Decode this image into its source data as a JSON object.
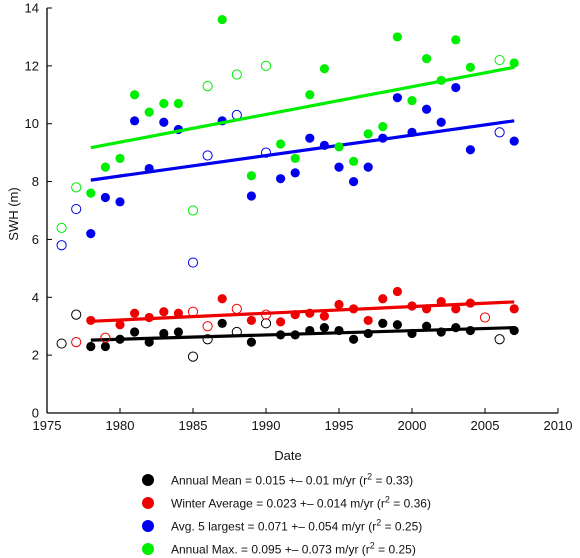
{
  "chart_data": {
    "type": "scatter",
    "xlabel": "Date",
    "ylabel": "SWH (m)",
    "xlim": [
      1975,
      2010
    ],
    "ylim": [
      0,
      14
    ],
    "xticks": [
      1975,
      1980,
      1985,
      1990,
      1995,
      2000,
      2005,
      2010
    ],
    "yticks": [
      0,
      2,
      4,
      6,
      8,
      10,
      12,
      14
    ],
    "xtick_labels": [
      "1975",
      "1980",
      "1985",
      "1990",
      "1995",
      "2000",
      "2005",
      "2010"
    ],
    "ytick_labels": [
      "0",
      "2",
      "4",
      "6",
      "8",
      "10",
      "12",
      "14"
    ],
    "grid": false,
    "legend_position": "bottom",
    "series": [
      {
        "key": "annual_mean",
        "color": "#000000",
        "legend_label": "Annual Mean = 0.015 +– 0.01 m/yr (r",
        "legend_suffix": " = 0.33)",
        "fit": {
          "x": [
            1978,
            2007
          ],
          "y": [
            2.52,
            2.95
          ]
        },
        "filled": [
          [
            1978,
            2.3
          ],
          [
            1979,
            2.3
          ],
          [
            1980,
            2.55
          ],
          [
            1981,
            2.8
          ],
          [
            1982,
            2.45
          ],
          [
            1983,
            2.75
          ],
          [
            1984,
            2.8
          ],
          [
            1987,
            3.1
          ],
          [
            1989,
            2.45
          ],
          [
            1991,
            2.7
          ],
          [
            1992,
            2.7
          ],
          [
            1993,
            2.85
          ],
          [
            1994,
            2.95
          ],
          [
            1995,
            2.85
          ],
          [
            1996,
            2.55
          ],
          [
            1997,
            2.75
          ],
          [
            1998,
            3.1
          ],
          [
            1999,
            3.05
          ],
          [
            2000,
            2.75
          ],
          [
            2001,
            3.0
          ],
          [
            2002,
            2.8
          ],
          [
            2003,
            2.95
          ],
          [
            2004,
            2.85
          ],
          [
            2007,
            2.85
          ]
        ],
        "open": [
          [
            1976,
            2.4
          ],
          [
            1977,
            3.4
          ],
          [
            1985,
            1.95
          ],
          [
            1986,
            2.55
          ],
          [
            1988,
            2.8
          ],
          [
            1990,
            3.1
          ],
          [
            2006,
            2.55
          ]
        ]
      },
      {
        "key": "winter_average",
        "color": "#ee0000",
        "legend_label": "Winter Average = 0.023 +– 0.014 m/yr (r",
        "legend_suffix": " = 0.36)",
        "fit": {
          "x": [
            1978,
            2007
          ],
          "y": [
            3.17,
            3.84
          ]
        },
        "filled": [
          [
            1978,
            3.2
          ],
          [
            1980,
            3.05
          ],
          [
            1981,
            3.45
          ],
          [
            1982,
            3.3
          ],
          [
            1983,
            3.5
          ],
          [
            1984,
            3.45
          ],
          [
            1987,
            3.95
          ],
          [
            1989,
            3.2
          ],
          [
            1991,
            3.15
          ],
          [
            1992,
            3.4
          ],
          [
            1993,
            3.45
          ],
          [
            1994,
            3.35
          ],
          [
            1995,
            3.75
          ],
          [
            1996,
            3.6
          ],
          [
            1997,
            3.2
          ],
          [
            1998,
            3.95
          ],
          [
            1999,
            4.2
          ],
          [
            2000,
            3.7
          ],
          [
            2001,
            3.6
          ],
          [
            2002,
            3.85
          ],
          [
            2003,
            3.6
          ],
          [
            2004,
            3.8
          ],
          [
            2007,
            3.6
          ]
        ],
        "open": [
          [
            1977,
            2.45
          ],
          [
            1979,
            2.6
          ],
          [
            1985,
            3.5
          ],
          [
            1986,
            3.0
          ],
          [
            1988,
            3.6
          ],
          [
            1990,
            3.4
          ],
          [
            2005,
            3.3
          ]
        ]
      },
      {
        "key": "avg_5_largest",
        "color": "#0000ee",
        "legend_label": "Avg. 5 largest = 0.071 +– 0.054 m/yr (r",
        "legend_suffix": " = 0.25)",
        "fit": {
          "x": [
            1978,
            2007
          ],
          "y": [
            8.05,
            10.1
          ]
        },
        "filled": [
          [
            1978,
            6.2
          ],
          [
            1979,
            7.45
          ],
          [
            1980,
            7.3
          ],
          [
            1981,
            10.1
          ],
          [
            1982,
            8.45
          ],
          [
            1983,
            10.05
          ],
          [
            1984,
            9.8
          ],
          [
            1987,
            10.1
          ],
          [
            1989,
            7.5
          ],
          [
            1991,
            8.1
          ],
          [
            1992,
            8.3
          ],
          [
            1993,
            9.5
          ],
          [
            1994,
            9.25
          ],
          [
            1995,
            8.5
          ],
          [
            1996,
            8.0
          ],
          [
            1997,
            8.5
          ],
          [
            1998,
            9.5
          ],
          [
            1999,
            10.9
          ],
          [
            2000,
            9.7
          ],
          [
            2001,
            10.5
          ],
          [
            2002,
            10.05
          ],
          [
            2003,
            11.25
          ],
          [
            2004,
            9.1
          ],
          [
            2007,
            9.4
          ]
        ],
        "open": [
          [
            1976,
            5.8
          ],
          [
            1977,
            7.05
          ],
          [
            1985,
            5.2
          ],
          [
            1986,
            8.9
          ],
          [
            1988,
            10.3
          ],
          [
            1990,
            9.0
          ],
          [
            2006,
            9.7
          ]
        ]
      },
      {
        "key": "annual_max",
        "color": "#00ee00",
        "legend_label": "Annual Max. = 0.095 +– 0.073 m/yr (r",
        "legend_suffix": " = 0.25)",
        "fit": {
          "x": [
            1978,
            2007
          ],
          "y": [
            9.17,
            11.95
          ]
        },
        "filled": [
          [
            1978,
            7.6
          ],
          [
            1979,
            8.5
          ],
          [
            1980,
            8.8
          ],
          [
            1981,
            11.0
          ],
          [
            1982,
            10.4
          ],
          [
            1983,
            10.7
          ],
          [
            1984,
            10.7
          ],
          [
            1987,
            13.6
          ],
          [
            1989,
            8.2
          ],
          [
            1991,
            9.3
          ],
          [
            1992,
            8.8
          ],
          [
            1993,
            11.0
          ],
          [
            1994,
            11.9
          ],
          [
            1995,
            9.2
          ],
          [
            1996,
            8.7
          ],
          [
            1997,
            9.65
          ],
          [
            1998,
            9.9
          ],
          [
            1999,
            13.0
          ],
          [
            2000,
            10.8
          ],
          [
            2001,
            12.25
          ],
          [
            2002,
            11.5
          ],
          [
            2003,
            12.9
          ],
          [
            2004,
            11.95
          ],
          [
            2007,
            12.1
          ]
        ],
        "open": [
          [
            1976,
            6.4
          ],
          [
            1977,
            7.8
          ],
          [
            1985,
            7.0
          ],
          [
            1986,
            11.3
          ],
          [
            1988,
            11.7
          ],
          [
            1990,
            12.0
          ],
          [
            2006,
            12.2
          ]
        ]
      }
    ]
  }
}
